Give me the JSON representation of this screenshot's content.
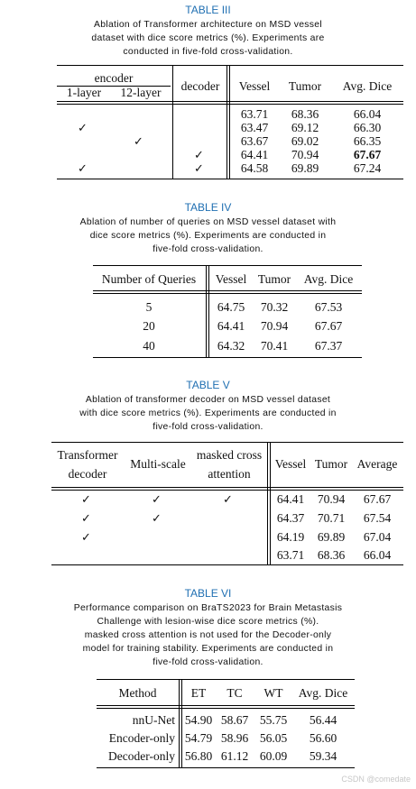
{
  "t3": {
    "label": "TABLE III",
    "caption": [
      "Ablation of Transformer architecture on MSD vessel",
      "dataset with dice score metrics (%). Experiments are",
      "conducted in five-fold cross-validation."
    ],
    "headers": {
      "encoder": "encoder",
      "l1": "1-layer",
      "l12": "12-layer",
      "decoder": "decoder",
      "vessel": "Vessel",
      "tumor": "Tumor",
      "avg": "Avg. Dice"
    },
    "check": "✓",
    "rows": [
      {
        "vessel": "63.71",
        "tumor": "68.36",
        "avg": "66.04"
      },
      {
        "vessel": "63.47",
        "tumor": "69.12",
        "avg": "66.30"
      },
      {
        "vessel": "63.67",
        "tumor": "69.02",
        "avg": "66.35"
      },
      {
        "vessel": "64.41",
        "tumor": "70.94",
        "avg": "67.67"
      },
      {
        "vessel": "64.58",
        "tumor": "69.89",
        "avg": "67.24"
      }
    ]
  },
  "t4": {
    "label": "TABLE IV",
    "caption": [
      "Ablation of number of queries on MSD vessel dataset with",
      "dice score metrics (%). Experiments are conducted in",
      "five-fold cross-validation."
    ],
    "headers": {
      "queries": "Number of Queries",
      "vessel": "Vessel",
      "tumor": "Tumor",
      "avg": "Avg. Dice"
    },
    "rows": [
      {
        "q": "5",
        "vessel": "64.75",
        "tumor": "70.32",
        "avg": "67.53"
      },
      {
        "q": "20",
        "vessel": "64.41",
        "tumor": "70.94",
        "avg": "67.67"
      },
      {
        "q": "40",
        "vessel": "64.32",
        "tumor": "70.41",
        "avg": "67.37"
      }
    ]
  },
  "t5": {
    "label": "TABLE V",
    "caption": [
      "Ablation of transformer decoder on MSD vessel dataset",
      "with dice score metrics (%). Experiments are conducted in",
      "five-fold cross-validation."
    ],
    "headers": {
      "td1": "Transformer",
      "td2": "decoder",
      "ms": "Multi-scale",
      "mca1": "masked cross",
      "mca2": "attention",
      "vessel": "Vessel",
      "tumor": "Tumor",
      "avg": "Average"
    },
    "rows": [
      {
        "vessel": "64.41",
        "tumor": "70.94",
        "avg": "67.67"
      },
      {
        "vessel": "64.37",
        "tumor": "70.71",
        "avg": "67.54"
      },
      {
        "vessel": "64.19",
        "tumor": "69.89",
        "avg": "67.04"
      },
      {
        "vessel": "63.71",
        "tumor": "68.36",
        "avg": "66.04"
      }
    ]
  },
  "t6": {
    "label": "TABLE VI",
    "caption": [
      "Performance comparison on BraTS2023 for Brain Metastasis",
      "Challenge with lesion-wise dice score metrics (%).",
      "masked cross attention is not used for the Decoder-only",
      "model for training stability. Experiments are conducted in",
      "five-fold cross-validation."
    ],
    "headers": {
      "method": "Method",
      "et": "ET",
      "tc": "TC",
      "wt": "WT",
      "avg": "Avg. Dice"
    },
    "rows": [
      {
        "method": "nnU-Net",
        "et": "54.90",
        "tc": "58.67",
        "wt": "55.75",
        "avg": "56.44"
      },
      {
        "method": "Encoder-only",
        "et": "54.79",
        "tc": "58.96",
        "wt": "56.05",
        "avg": "56.60"
      },
      {
        "method": "Decoder-only",
        "et": "56.80",
        "tc": "61.12",
        "wt": "60.09",
        "avg": "59.34"
      }
    ]
  },
  "watermark": "CSDN @comedate"
}
